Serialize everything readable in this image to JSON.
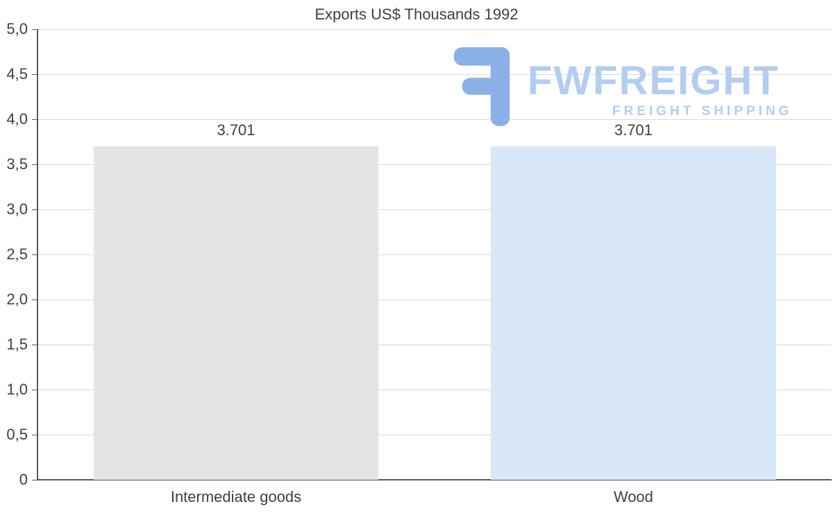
{
  "chart_data": {
    "type": "bar",
    "title": "Exports US$ Thousands 1992",
    "categories": [
      "Intermediate goods",
      "Wood"
    ],
    "values": [
      3.701,
      3.701
    ],
    "value_labels": [
      "3.701",
      "3.701"
    ],
    "series_colors": [
      "#e4e4e4",
      "#d9e8f8"
    ],
    "ylim": [
      0,
      5
    ],
    "ytick_labels": [
      "5,0",
      "4,5",
      "4,0",
      "3,5",
      "3,0",
      "2,5",
      "2,0",
      "1,5",
      "1,0",
      "0,5",
      "0"
    ],
    "grid": true,
    "legend": "none",
    "xlabel": "",
    "ylabel": "",
    "axis_color": "#595959",
    "gridline_color": "#d9d9d9",
    "text_color": "#404040"
  },
  "watermark": {
    "brand": "FWFREIGHT",
    "tagline": "FREIGHT SHIPPING",
    "text_color": "#b3cdf1",
    "icon_color": "#8bb0e8"
  }
}
